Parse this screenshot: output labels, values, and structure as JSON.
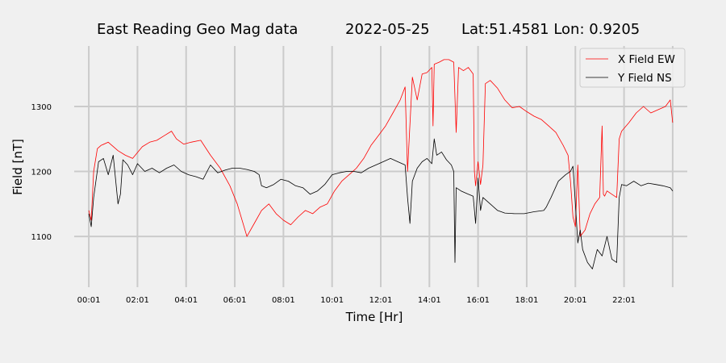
{
  "chart_data": {
    "type": "line",
    "title_parts": [
      "East Reading Geo Mag data",
      "2022-05-25",
      "Lat:51.4581  Lon: 0.9205"
    ],
    "xlabel": "Time  [Hr]",
    "ylabel": "Field  [nT]",
    "x_unit": "hours since 00:01",
    "xlim": [
      -0.6,
      24.6
    ],
    "ylim": [
      1022,
      1393
    ],
    "x_ticks": [
      0,
      2,
      4,
      6,
      8,
      10,
      12,
      14,
      16,
      18,
      20,
      22,
      24
    ],
    "x_tick_labels": [
      "00:01",
      "02:01",
      "04:01",
      "06:01",
      "08:01",
      "10:01",
      "12:01",
      "14:01",
      "16:01",
      "18:01",
      "20:01",
      "22:01",
      ""
    ],
    "y_ticks": [
      1100,
      1200,
      1300
    ],
    "y_tick_labels": [
      "1100",
      "1200",
      "1300"
    ],
    "grid": true,
    "legend_position": "top-right",
    "colors": {
      "background": "#f0f0f0",
      "grid": "#cbcbcb",
      "x_series": "#ff0000",
      "y_series": "#000000"
    },
    "series": [
      {
        "name": "X Field EW",
        "color": "#ff0000",
        "x": [
          0,
          0.1,
          0.2,
          0.35,
          0.5,
          0.8,
          1.2,
          1.5,
          1.8,
          2.2,
          2.5,
          2.8,
          3.1,
          3.4,
          3.6,
          3.9,
          4.2,
          4.6,
          5.0,
          5.4,
          5.8,
          6.1,
          6.3,
          6.5,
          6.8,
          7.1,
          7.4,
          7.7,
          8.0,
          8.3,
          8.6,
          8.9,
          9.2,
          9.5,
          9.8,
          10.1,
          10.4,
          10.7,
          11.0,
          11.3,
          11.6,
          11.9,
          12.2,
          12.5,
          12.8,
          13.0,
          13.1,
          13.3,
          13.5,
          13.7,
          13.9,
          14.1,
          14.15,
          14.2,
          14.4,
          14.6,
          14.8,
          15.0,
          15.1,
          15.2,
          15.4,
          15.6,
          15.8,
          15.85,
          15.9,
          16.0,
          16.1,
          16.2,
          16.3,
          16.5,
          16.8,
          17.1,
          17.4,
          17.7,
          18.0,
          18.3,
          18.6,
          18.9,
          19.2,
          19.5,
          19.7,
          19.8,
          19.9,
          20.0,
          20.1,
          20.2,
          20.4,
          20.6,
          20.8,
          21.0,
          21.1,
          21.15,
          21.2,
          21.3,
          21.5,
          21.7,
          21.8,
          21.9,
          22.2,
          22.5,
          22.8,
          23.1,
          23.4,
          23.7,
          23.9,
          24.0
        ],
        "y": [
          1140,
          1125,
          1200,
          1235,
          1240,
          1245,
          1232,
          1225,
          1220,
          1238,
          1245,
          1248,
          1255,
          1262,
          1250,
          1242,
          1245,
          1248,
          1225,
          1205,
          1178,
          1150,
          1125,
          1100,
          1120,
          1140,
          1150,
          1135,
          1125,
          1118,
          1130,
          1140,
          1135,
          1145,
          1150,
          1170,
          1185,
          1195,
          1205,
          1220,
          1240,
          1255,
          1270,
          1290,
          1310,
          1330,
          1200,
          1345,
          1310,
          1350,
          1352,
          1360,
          1270,
          1365,
          1368,
          1372,
          1372,
          1368,
          1260,
          1360,
          1355,
          1360,
          1350,
          1200,
          1178,
          1215,
          1180,
          1210,
          1335,
          1340,
          1328,
          1310,
          1298,
          1300,
          1292,
          1285,
          1280,
          1270,
          1260,
          1240,
          1225,
          1185,
          1130,
          1115,
          1210,
          1100,
          1110,
          1135,
          1150,
          1160,
          1270,
          1165,
          1162,
          1170,
          1165,
          1160,
          1250,
          1262,
          1275,
          1290,
          1300,
          1290,
          1295,
          1300,
          1310,
          1275
        ]
      },
      {
        "name": "Y Field NS",
        "color": "#000000",
        "x": [
          0,
          0.1,
          0.2,
          0.4,
          0.6,
          0.8,
          1.0,
          1.2,
          1.3,
          1.4,
          1.6,
          1.8,
          2.0,
          2.3,
          2.6,
          2.9,
          3.2,
          3.5,
          3.8,
          4.1,
          4.4,
          4.7,
          5.0,
          5.3,
          5.6,
          5.9,
          6.2,
          6.5,
          6.8,
          7.0,
          7.1,
          7.3,
          7.6,
          7.9,
          8.2,
          8.5,
          8.8,
          9.1,
          9.4,
          9.7,
          10.0,
          10.3,
          10.6,
          10.9,
          11.2,
          11.5,
          11.8,
          12.1,
          12.4,
          12.7,
          13.0,
          13.1,
          13.2,
          13.3,
          13.5,
          13.7,
          13.9,
          14.1,
          14.2,
          14.3,
          14.5,
          14.7,
          14.9,
          15.0,
          15.05,
          15.1,
          15.3,
          15.6,
          15.8,
          15.9,
          16.0,
          16.1,
          16.2,
          16.5,
          16.8,
          17.1,
          17.5,
          17.9,
          18.3,
          18.7,
          18.8,
          19.0,
          19.3,
          19.6,
          19.8,
          19.9,
          20.0,
          20.1,
          20.2,
          20.3,
          20.5,
          20.7,
          20.9,
          21.1,
          21.3,
          21.5,
          21.7,
          21.8,
          21.9,
          22.1,
          22.4,
          22.7,
          23.0,
          23.3,
          23.6,
          23.9,
          24.0
        ],
        "y": [
          1135,
          1115,
          1160,
          1215,
          1220,
          1195,
          1225,
          1150,
          1165,
          1218,
          1210,
          1195,
          1212,
          1200,
          1205,
          1198,
          1205,
          1210,
          1200,
          1195,
          1192,
          1188,
          1210,
          1198,
          1202,
          1205,
          1205,
          1203,
          1200,
          1195,
          1178,
          1175,
          1180,
          1188,
          1185,
          1178,
          1175,
          1165,
          1170,
          1180,
          1195,
          1198,
          1200,
          1200,
          1198,
          1205,
          1210,
          1215,
          1220,
          1215,
          1210,
          1160,
          1120,
          1185,
          1205,
          1215,
          1220,
          1212,
          1250,
          1225,
          1230,
          1218,
          1210,
          1200,
          1060,
          1175,
          1170,
          1165,
          1162,
          1120,
          1190,
          1140,
          1160,
          1150,
          1140,
          1136,
          1135,
          1135,
          1138,
          1140,
          1145,
          1160,
          1185,
          1195,
          1200,
          1208,
          1150,
          1090,
          1110,
          1080,
          1060,
          1050,
          1080,
          1070,
          1100,
          1065,
          1060,
          1160,
          1180,
          1178,
          1185,
          1178,
          1182,
          1180,
          1178,
          1175,
          1170
        ]
      }
    ]
  }
}
